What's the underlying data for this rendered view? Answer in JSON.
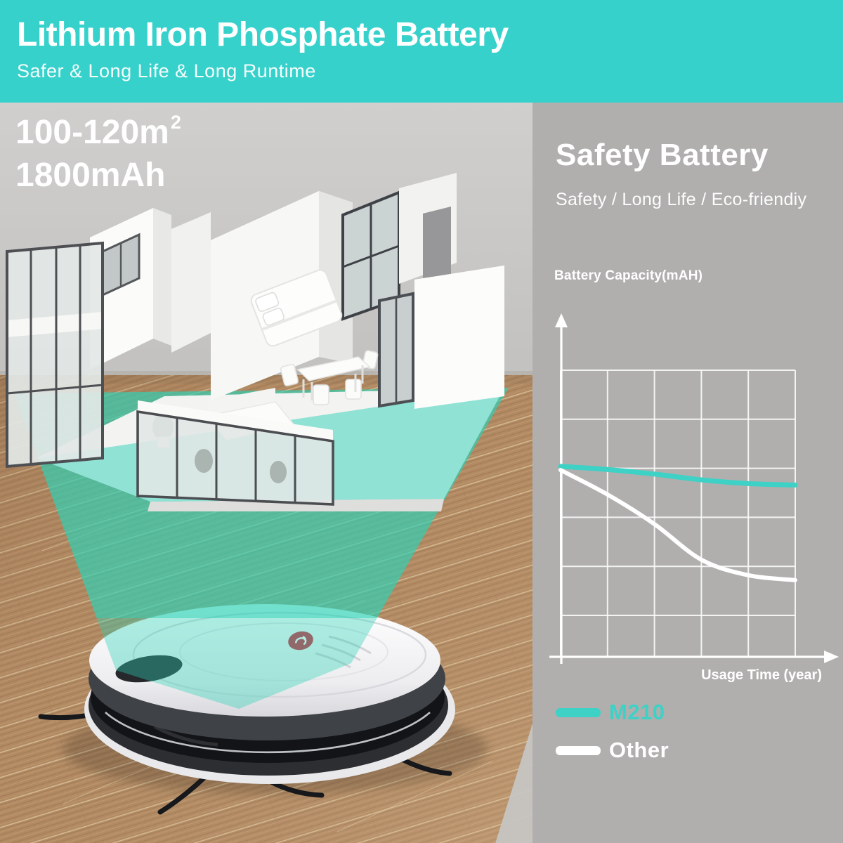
{
  "header": {
    "title": "Lithium Iron Phosphate Battery",
    "subtitle": "Safer & Long Life & Long Runtime",
    "bg_color": "#36D1CB"
  },
  "left_panel": {
    "area_value": "100-120",
    "area_unit": "m",
    "area_sup": "2",
    "capacity": "1800mAh",
    "scene": {
      "objects": [
        "apartment-floor-plan",
        "scan-beam",
        "robot-vacuum",
        "wood-floor"
      ],
      "beam_color": "#2ED1B6",
      "robot_logo_color": "#D0293C"
    }
  },
  "right_panel": {
    "title": "Safety Battery",
    "subtitle": "Safety / Long Life / Eco-friendiy",
    "capacity_axis_label": "Battery Capacity(mAH)",
    "usage_axis_label": "Usage Time (year)",
    "bg_color": "#B0AFAE",
    "legend": [
      {
        "label": "M210",
        "color": "#3ED1C6"
      },
      {
        "label": "Other",
        "color": "#FFFFFF"
      }
    ]
  },
  "chart_data": {
    "type": "line",
    "title": "",
    "ylabel": "Battery Capacity(mAH)",
    "xlabel": "Usage Time (year)",
    "x": [
      0,
      1,
      2,
      3,
      4,
      5
    ],
    "series": [
      {
        "name": "M210",
        "color": "#3ED1C6",
        "stroke_width": 7,
        "values": [
          66.3,
          65.2,
          63.6,
          61.6,
          60.3,
          59.8
        ]
      },
      {
        "name": "Other",
        "color": "#FFFFFF",
        "stroke_width": 6,
        "values": [
          65.0,
          56.5,
          46.2,
          33.8,
          28.4,
          26.7
        ]
      }
    ],
    "ylim": [
      0,
      100
    ],
    "xlim": [
      0,
      5
    ],
    "grid": {
      "cols": 5,
      "rows": 5,
      "color": "rgba(255,255,255,0.85)"
    },
    "tick_labels": "none",
    "legend_position": "bottom-left"
  },
  "colors": {
    "header_teal": "#36D1CB",
    "left_bg": "#C9C8C6",
    "right_bg": "#B0AFAE",
    "wood": "#B18A63",
    "beam": "#2ED1B6",
    "robot_logo_red": "#D0293C",
    "axis_white": "#FFFFFF"
  }
}
